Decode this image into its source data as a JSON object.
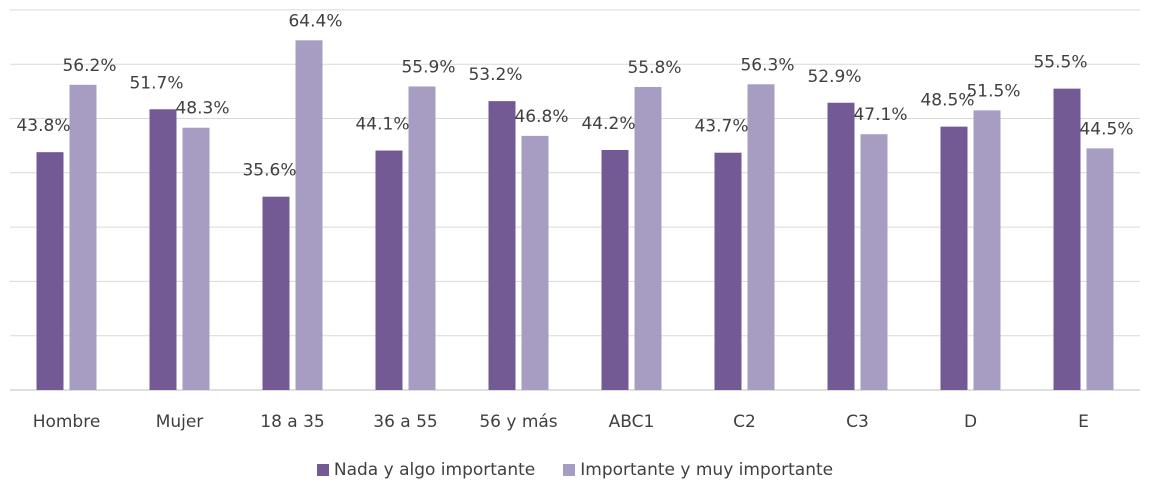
{
  "chart_data": {
    "type": "bar",
    "categories": [
      "Hombre",
      "Mujer",
      "18 a 35",
      "36 a 55",
      "56 y más",
      "ABC1",
      "C2",
      "C3",
      "D",
      "E"
    ],
    "series": [
      {
        "name": "Nada y algo importante",
        "color": "#735a94",
        "values": [
          43.8,
          51.7,
          35.6,
          44.1,
          53.2,
          44.2,
          43.7,
          52.9,
          48.5,
          55.5
        ],
        "labels": [
          "43.8%",
          "51.7%",
          "35.6%",
          "44.1%",
          "53.2%",
          "44.2%",
          "43.7%",
          "52.9%",
          "48.5%",
          "55.5%"
        ]
      },
      {
        "name": "Importante y muy importante",
        "color": "#a79dc2",
        "values": [
          56.2,
          48.3,
          64.4,
          55.9,
          46.8,
          55.8,
          56.3,
          47.1,
          51.5,
          44.5
        ],
        "labels": [
          "56.2%",
          "48.3%",
          "64.4%",
          "55.9%",
          "46.8%",
          "55.8%",
          "56.3%",
          "47.1%",
          "51.5%",
          "44.5%"
        ]
      }
    ],
    "ylim": [
      0,
      70
    ],
    "grid": true,
    "legend_position": "bottom"
  }
}
